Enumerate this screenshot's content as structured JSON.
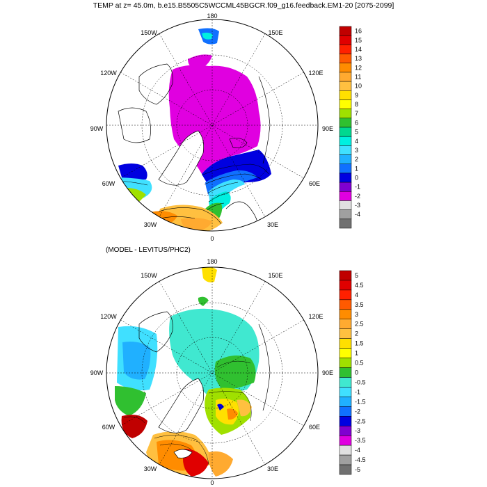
{
  "title": "TEMP at z=  45.0m, b.e15.B5505C5WCCML45BGCR.f09_g16.feedback.EM1-20 [2075-2099]",
  "subtitle": "(MODEL - LEVITUS/PHC2)",
  "longitude_labels": [
    "180",
    "150W",
    "150E",
    "120W",
    "120E",
    "90W",
    "90E",
    "60W",
    "60E",
    "30W",
    "30E",
    "0"
  ],
  "map1": {
    "colorbar_labels": [
      "16",
      "15",
      "14",
      "13",
      "12",
      "11",
      "10",
      "9",
      "8",
      "7",
      "6",
      "5",
      "4",
      "3",
      "2",
      "1",
      "0",
      "-1",
      "-2",
      "-3",
      "-4"
    ],
    "colorbar_colors": [
      "#c00000",
      "#e00000",
      "#ff2000",
      "#ff5a00",
      "#ff8c00",
      "#ffaa30",
      "#ffc040",
      "#ffe000",
      "#ffff00",
      "#a0e000",
      "#30c030",
      "#00d890",
      "#00f0e0",
      "#40e0ff",
      "#20b0ff",
      "#1070ff",
      "#0000e0",
      "#8000d0",
      "#e000e0",
      "#e0e0e0",
      "#a0a0a0",
      "#707070"
    ]
  },
  "map2": {
    "colorbar_labels": [
      "5",
      "4.5",
      "4",
      "3.5",
      "3",
      "2.5",
      "2",
      "1.5",
      "1",
      "0.5",
      "0",
      "-0.5",
      "-1",
      "-1.5",
      "-2",
      "-2.5",
      "-3",
      "-3.5",
      "-4",
      "-4.5",
      "-5"
    ],
    "colorbar_colors": [
      "#c00000",
      "#e00000",
      "#ff2000",
      "#ff5a00",
      "#ff8c00",
      "#ffaa30",
      "#ffc040",
      "#ffe000",
      "#ffff00",
      "#a0e000",
      "#30c030",
      "#40e8d0",
      "#40e0ff",
      "#20b0ff",
      "#1070ff",
      "#0000e0",
      "#8000d0",
      "#e000e0",
      "#e0e0e0",
      "#a0a0a0",
      "#707070"
    ]
  }
}
